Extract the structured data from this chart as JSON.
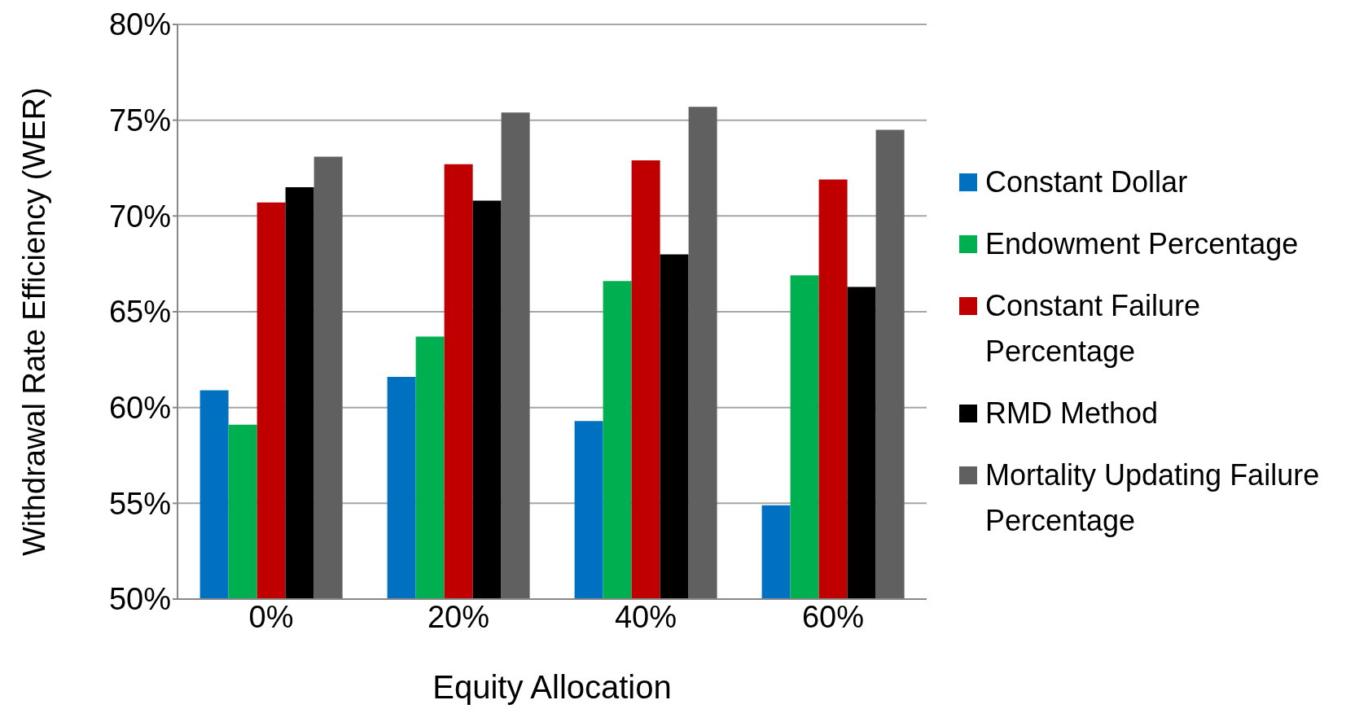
{
  "chart_data": {
    "type": "bar",
    "xlabel": "Equity Allocation",
    "ylabel": "Withdrawal Rate Efficiency (WER)",
    "categories": [
      "0%",
      "20%",
      "40%",
      "60%"
    ],
    "series": [
      {
        "name": "Constant Dollar",
        "color": "#0070c0",
        "values": [
          60.9,
          61.6,
          59.3,
          54.9
        ]
      },
      {
        "name": "Endowment Percentage",
        "color": "#00b050",
        "values": [
          59.1,
          63.7,
          66.6,
          66.9
        ]
      },
      {
        "name": "Constant Failure Percentage",
        "color": "#c00000",
        "values": [
          70.7,
          72.7,
          72.9,
          71.9
        ]
      },
      {
        "name": "RMD Method",
        "color": "#000000",
        "values": [
          71.5,
          70.8,
          68.0,
          66.3
        ]
      },
      {
        "name": "Mortality Updating Failure Percentage",
        "color": "#606060",
        "values": [
          73.1,
          75.4,
          75.7,
          74.5
        ]
      }
    ],
    "ylim": [
      50,
      80
    ],
    "yticks": [
      {
        "value": 50,
        "label": "50%"
      },
      {
        "value": 55,
        "label": "55%"
      },
      {
        "value": 60,
        "label": "60%"
      },
      {
        "value": 65,
        "label": "65%"
      },
      {
        "value": 70,
        "label": "70%"
      },
      {
        "value": 75,
        "label": "75%"
      },
      {
        "value": 80,
        "label": "80%"
      }
    ],
    "grid": "y",
    "legend": "right"
  }
}
